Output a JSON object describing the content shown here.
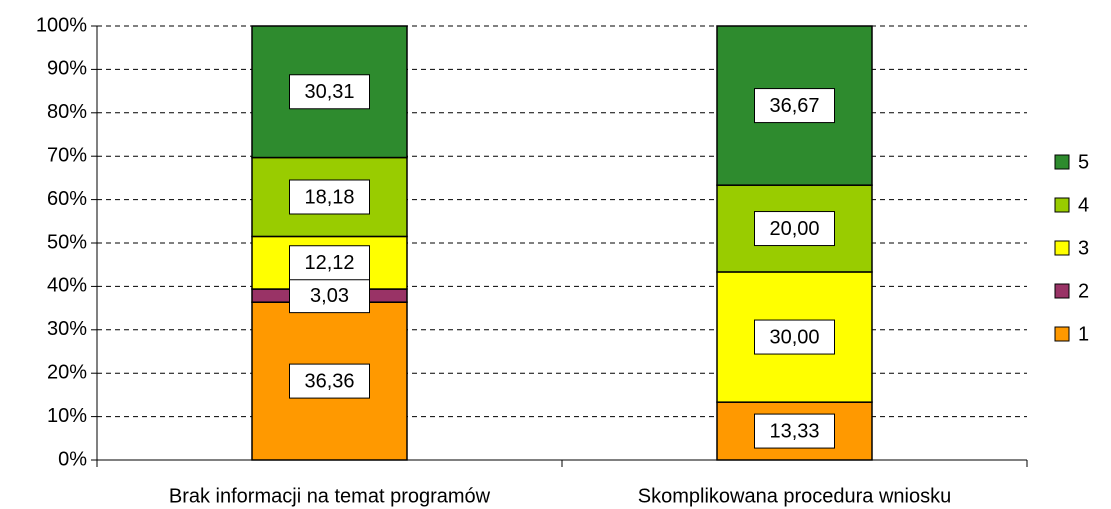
{
  "chart_data": {
    "type": "stacked_bar_100",
    "categories": [
      "Brak informacji na temat programów",
      "Skomplikowana procedura wniosku"
    ],
    "series": [
      {
        "name": "1",
        "color": "#ff9900",
        "values": [
          36.36,
          13.33
        ],
        "value_labels": [
          "36,36",
          "13,33"
        ]
      },
      {
        "name": "2",
        "color": "#993366",
        "values": [
          3.03,
          null
        ],
        "value_labels": [
          "3,03",
          null
        ]
      },
      {
        "name": "3",
        "color": "#ffff00",
        "values": [
          12.12,
          30.0
        ],
        "value_labels": [
          "12,12",
          "30,00"
        ]
      },
      {
        "name": "4",
        "color": "#99cc00",
        "values": [
          18.18,
          20.0
        ],
        "value_labels": [
          "18,18",
          "20,00"
        ]
      },
      {
        "name": "5",
        "color": "#2e8b2e",
        "values": [
          30.31,
          36.67
        ],
        "value_labels": [
          "30,31",
          "36,67"
        ]
      }
    ],
    "ylim": [
      0,
      100
    ],
    "yticks": [
      {
        "value": 0,
        "label": "0%"
      },
      {
        "value": 10,
        "label": "10%"
      },
      {
        "value": 20,
        "label": "20%"
      },
      {
        "value": 30,
        "label": "30%"
      },
      {
        "value": 40,
        "label": "40%"
      },
      {
        "value": 50,
        "label": "50%"
      },
      {
        "value": 60,
        "label": "60%"
      },
      {
        "value": 70,
        "label": "70%"
      },
      {
        "value": 80,
        "label": "80%"
      },
      {
        "value": 90,
        "label": "90%"
      },
      {
        "value": 100,
        "label": "100%"
      }
    ],
    "grid": true,
    "legend": "right"
  }
}
